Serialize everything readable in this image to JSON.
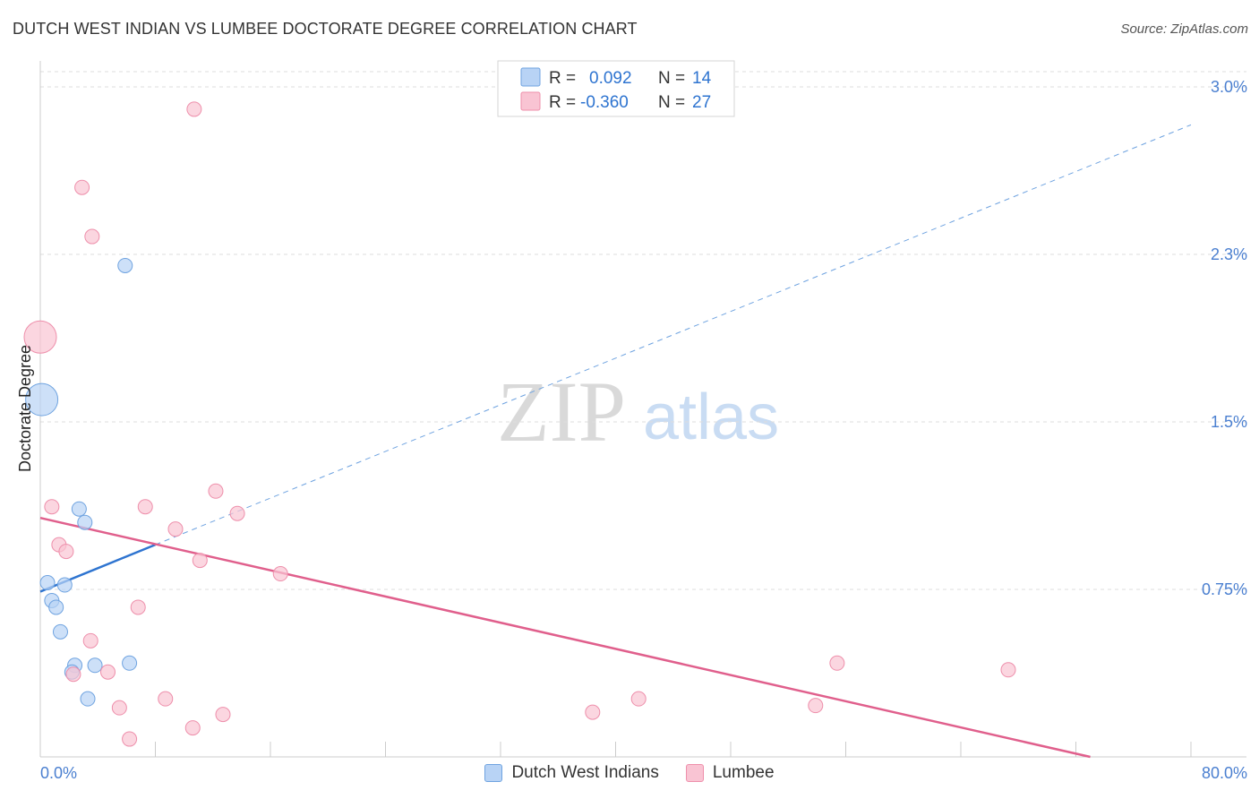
{
  "header": {
    "title": "DUTCH WEST INDIAN VS LUMBEE DOCTORATE DEGREE CORRELATION CHART",
    "source": "Source: ZipAtlas.com"
  },
  "watermark": {
    "zip": "ZIP",
    "atlas": "atlas"
  },
  "stats_legend": {
    "rows": [
      {
        "r_label": "R =",
        "r_value": "0.092",
        "n_label": "N =",
        "n_value": "14",
        "series": "Dutch West Indians"
      },
      {
        "r_label": "R =",
        "r_value": "-0.360",
        "n_label": "N =",
        "n_value": "27",
        "series": "Lumbee"
      }
    ]
  },
  "colors": {
    "blue_fill": "#b8d3f5",
    "blue_stroke": "#6fa3e0",
    "blue_line": "#2e74d0",
    "pink_fill": "#f9c4d3",
    "pink_stroke": "#ee8fab",
    "pink_line": "#e05f8c",
    "axis_label": "#4a7fd0",
    "grid": "#dddddd"
  },
  "chart_data": {
    "type": "scatter",
    "title": "DUTCH WEST INDIAN VS LUMBEE DOCTORATE DEGREE CORRELATION CHART",
    "xlabel": "",
    "ylabel": "Doctorate Degree",
    "xlim": [
      0,
      80
    ],
    "ylim": [
      0,
      3.0
    ],
    "x_tick_labels": [
      "0.0%",
      "80.0%"
    ],
    "y_ticks": [
      0.75,
      1.5,
      2.25,
      3.0
    ],
    "y_tick_labels": [
      "0.75%",
      "1.5%",
      "2.3%",
      "3.0%"
    ],
    "grid": true,
    "legend": [
      "Dutch West Indians",
      "Lumbee"
    ],
    "series": [
      {
        "name": "Dutch West Indians",
        "points": [
          {
            "x": 0.1,
            "y": 1.6,
            "size": "large"
          },
          {
            "x": 5.9,
            "y": 2.2
          },
          {
            "x": 0.5,
            "y": 0.78
          },
          {
            "x": 1.7,
            "y": 0.77
          },
          {
            "x": 0.8,
            "y": 0.7
          },
          {
            "x": 1.1,
            "y": 0.67
          },
          {
            "x": 1.4,
            "y": 0.56
          },
          {
            "x": 2.7,
            "y": 1.11
          },
          {
            "x": 3.1,
            "y": 1.05
          },
          {
            "x": 2.4,
            "y": 0.41
          },
          {
            "x": 2.2,
            "y": 0.38
          },
          {
            "x": 3.8,
            "y": 0.41
          },
          {
            "x": 6.2,
            "y": 0.42
          },
          {
            "x": 3.3,
            "y": 0.26
          }
        ],
        "trend": {
          "x0": 0,
          "y0": 0.74,
          "x1": 8,
          "y1": 0.95,
          "extended_x1": 80,
          "extended_y1": 2.83
        }
      },
      {
        "name": "Lumbee",
        "points": [
          {
            "x": 0.0,
            "y": 1.88,
            "size": "large"
          },
          {
            "x": 10.7,
            "y": 2.9
          },
          {
            "x": 2.9,
            "y": 2.55
          },
          {
            "x": 3.6,
            "y": 2.33
          },
          {
            "x": 0.8,
            "y": 1.12
          },
          {
            "x": 7.3,
            "y": 1.12
          },
          {
            "x": 12.2,
            "y": 1.19
          },
          {
            "x": 13.7,
            "y": 1.09
          },
          {
            "x": 9.4,
            "y": 1.02
          },
          {
            "x": 1.3,
            "y": 0.95
          },
          {
            "x": 1.8,
            "y": 0.92
          },
          {
            "x": 11.1,
            "y": 0.88
          },
          {
            "x": 16.7,
            "y": 0.82
          },
          {
            "x": 6.8,
            "y": 0.67
          },
          {
            "x": 3.5,
            "y": 0.52
          },
          {
            "x": 2.3,
            "y": 0.37
          },
          {
            "x": 4.7,
            "y": 0.38
          },
          {
            "x": 8.7,
            "y": 0.26
          },
          {
            "x": 5.5,
            "y": 0.22
          },
          {
            "x": 12.7,
            "y": 0.19
          },
          {
            "x": 10.6,
            "y": 0.13
          },
          {
            "x": 6.2,
            "y": 0.08
          },
          {
            "x": 38.4,
            "y": 0.2
          },
          {
            "x": 41.6,
            "y": 0.26
          },
          {
            "x": 55.4,
            "y": 0.42
          },
          {
            "x": 67.3,
            "y": 0.39
          },
          {
            "x": 53.9,
            "y": 0.23
          }
        ],
        "trend": {
          "x0": 0,
          "y0": 1.07,
          "x1": 73,
          "y1": 0.0
        }
      }
    ]
  }
}
